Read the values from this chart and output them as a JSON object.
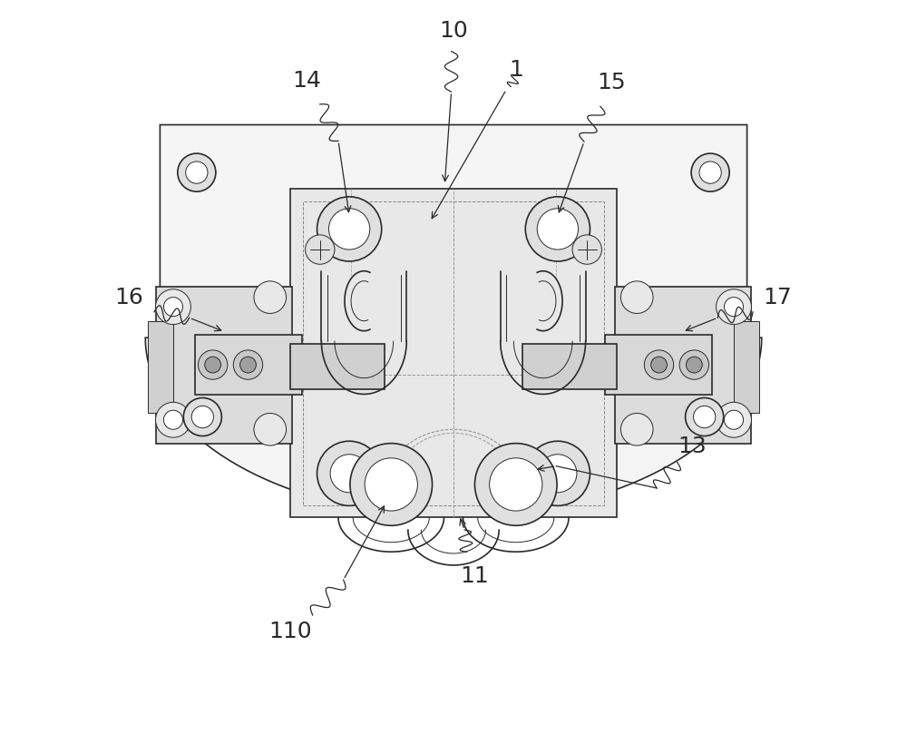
{
  "background_color": "#ffffff",
  "line_color": "#2a2a2a",
  "figure_width": 10.0,
  "figure_height": 8.09,
  "label_fontsize": 18
}
